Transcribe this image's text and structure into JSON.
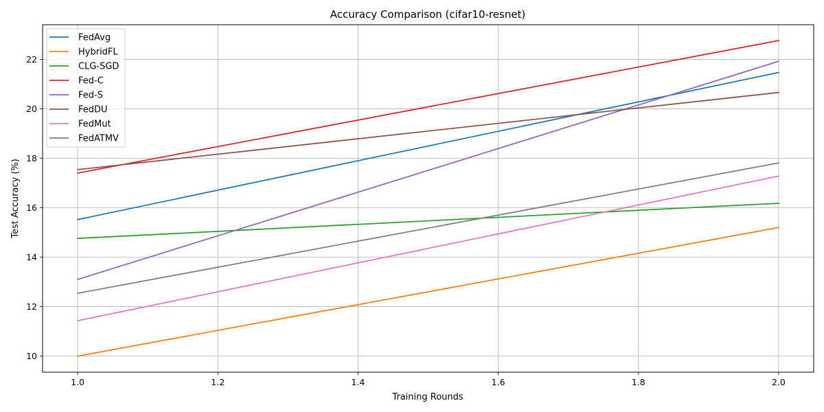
{
  "chart_data": {
    "type": "line",
    "title": "Accuracy Comparison (cifar10-resnet)",
    "xlabel": "Training Rounds",
    "ylabel": "Test Accuracy (%)",
    "xlim": [
      0.95,
      2.05
    ],
    "ylim": [
      9.35,
      23.4
    ],
    "xticks": [
      1.0,
      1.2,
      1.4,
      1.6,
      1.8,
      2.0
    ],
    "xtick_labels": [
      "1.0",
      "1.2",
      "1.4",
      "1.6",
      "1.8",
      "2.0"
    ],
    "yticks": [
      10,
      12,
      14,
      16,
      18,
      20,
      22
    ],
    "ytick_labels": [
      "10",
      "12",
      "14",
      "16",
      "18",
      "20",
      "22"
    ],
    "grid": true,
    "legend_position": "top-left",
    "x": [
      1,
      2
    ],
    "series": [
      {
        "name": "FedAvg",
        "color": "#1f77b4",
        "values": [
          15.52,
          21.47
        ]
      },
      {
        "name": "HybridFL",
        "color": "#ff7f0e",
        "values": [
          10.0,
          15.2
        ]
      },
      {
        "name": "CLG-SGD",
        "color": "#2ca02c",
        "values": [
          14.76,
          16.18
        ]
      },
      {
        "name": "Fed-C",
        "color": "#d62728",
        "values": [
          17.4,
          22.76
        ]
      },
      {
        "name": "Fed-S",
        "color": "#9467bd",
        "values": [
          13.1,
          21.92
        ]
      },
      {
        "name": "FedDU",
        "color": "#8c564b",
        "values": [
          17.54,
          20.66
        ]
      },
      {
        "name": "FedMut",
        "color": "#e377c2",
        "values": [
          11.43,
          17.28
        ]
      },
      {
        "name": "FedATMV",
        "color": "#7f7f7f",
        "values": [
          12.54,
          17.81
        ]
      }
    ]
  }
}
